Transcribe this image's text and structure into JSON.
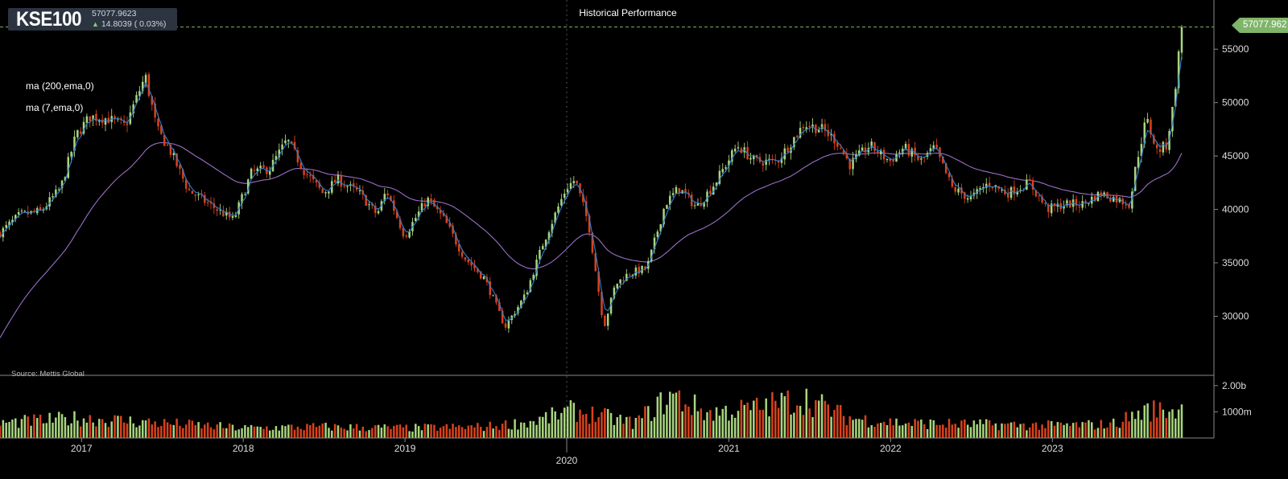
{
  "ticker": {
    "symbol": "KSE100",
    "price": "57077.9623",
    "change": "14.8039 ( 0.03%)",
    "change_arrow": "up-arrow-icon"
  },
  "last_price_tag": "57077.962",
  "legends": [
    "ma (200,ema,0)",
    "ma (7,ema,0)"
  ],
  "source": "Source: Mettis Global",
  "colors": {
    "up": "#a8d57f",
    "down": "#d9421c",
    "ma7": "#2f7fd0",
    "ma200": "#9a6fc7",
    "tag": "#7fb56a"
  },
  "chart_data": {
    "type": "candlestick",
    "title": "Historical Performance",
    "xlabel": "",
    "ylabel": "",
    "ylim": [
      26500,
      57500
    ],
    "y_ticks": [
      30000,
      35000,
      40000,
      45000,
      50000,
      55000
    ],
    "x_ticks": [
      {
        "label": "2017",
        "date": "2017-01-01"
      },
      {
        "label": "2018",
        "date": "2018-01-01"
      },
      {
        "label": "2019",
        "date": "2019-01-01"
      },
      {
        "label": "2020",
        "date": "2020-01-01"
      },
      {
        "label": "2021",
        "date": "2021-01-01"
      },
      {
        "label": "2022",
        "date": "2022-01-01"
      },
      {
        "label": "2023",
        "date": "2023-01-01"
      }
    ],
    "x_range": [
      "2016-07-01",
      "2023-10-20"
    ],
    "last_value": 57077.9623,
    "series": [
      {
        "name": "ma (7,ema,0)",
        "kind": "ema",
        "period": 7
      },
      {
        "name": "ma (200,ema,0)",
        "kind": "ema",
        "period": 200
      }
    ],
    "price_path": [
      [
        "2016-07-01",
        37800
      ],
      [
        "2016-08-15",
        39500
      ],
      [
        "2016-10-01",
        39800
      ],
      [
        "2016-11-15",
        42000
      ],
      [
        "2016-12-20",
        47000
      ],
      [
        "2017-01-20",
        48700
      ],
      [
        "2017-03-01",
        48500
      ],
      [
        "2017-04-10",
        47800
      ],
      [
        "2017-05-25",
        52500
      ],
      [
        "2017-06-20",
        47500
      ],
      [
        "2017-07-20",
        45500
      ],
      [
        "2017-08-30",
        41800
      ],
      [
        "2017-10-15",
        40500
      ],
      [
        "2017-12-10",
        39000
      ],
      [
        "2018-01-20",
        43500
      ],
      [
        "2018-03-01",
        43800
      ],
      [
        "2018-04-10",
        46500
      ],
      [
        "2018-05-20",
        43500
      ],
      [
        "2018-06-30",
        41500
      ],
      [
        "2018-08-01",
        42800
      ],
      [
        "2018-09-20",
        41500
      ],
      [
        "2018-10-30",
        39500
      ],
      [
        "2018-11-20",
        41800
      ],
      [
        "2018-12-31",
        37500
      ],
      [
        "2019-02-20",
        41000
      ],
      [
        "2019-03-31",
        39000
      ],
      [
        "2019-05-15",
        35500
      ],
      [
        "2019-06-30",
        33500
      ],
      [
        "2019-08-15",
        29000
      ],
      [
        "2019-09-30",
        32000
      ],
      [
        "2019-11-10",
        37000
      ],
      [
        "2019-12-31",
        42000
      ],
      [
        "2020-01-20",
        42800
      ],
      [
        "2020-02-20",
        38500
      ],
      [
        "2020-03-25",
        29000
      ],
      [
        "2020-04-20",
        33000
      ],
      [
        "2020-05-20",
        34000
      ],
      [
        "2020-06-30",
        34500
      ],
      [
        "2020-08-10",
        40500
      ],
      [
        "2020-09-10",
        42000
      ],
      [
        "2020-10-20",
        40200
      ],
      [
        "2020-12-01",
        42500
      ],
      [
        "2021-01-20",
        46000
      ],
      [
        "2021-03-01",
        44500
      ],
      [
        "2021-04-20",
        44500
      ],
      [
        "2021-06-20",
        48000
      ],
      [
        "2021-07-30",
        47500
      ],
      [
        "2021-08-30",
        46500
      ],
      [
        "2021-10-01",
        44200
      ],
      [
        "2021-11-15",
        46000
      ],
      [
        "2021-12-30",
        44500
      ],
      [
        "2022-01-31",
        45800
      ],
      [
        "2022-03-10",
        44500
      ],
      [
        "2022-04-10",
        45800
      ],
      [
        "2022-05-20",
        42000
      ],
      [
        "2022-06-30",
        41000
      ],
      [
        "2022-08-10",
        42500
      ],
      [
        "2022-09-20",
        41500
      ],
      [
        "2022-11-10",
        42500
      ],
      [
        "2022-12-20",
        40000
      ],
      [
        "2023-01-31",
        40500
      ],
      [
        "2023-03-10",
        40500
      ],
      [
        "2023-04-20",
        41500
      ],
      [
        "2023-06-25",
        40500
      ],
      [
        "2023-07-10",
        44500
      ],
      [
        "2023-08-01",
        48500
      ],
      [
        "2023-08-25",
        45500
      ],
      [
        "2023-09-15",
        46000
      ],
      [
        "2023-09-30",
        49500
      ],
      [
        "2023-10-20",
        57078
      ]
    ],
    "volume": {
      "y_ticks": [
        {
          "label": "1000m",
          "value": 1000000000
        },
        {
          "label": "2.00b",
          "value": 2000000000
        }
      ],
      "ylim": [
        0,
        2300000000
      ],
      "profile": [
        [
          "2016-07-01",
          600
        ],
        [
          "2016-12-31",
          800
        ],
        [
          "2017-06-30",
          600
        ],
        [
          "2017-12-31",
          400
        ],
        [
          "2018-06-30",
          450
        ],
        [
          "2018-12-31",
          400
        ],
        [
          "2019-06-30",
          450
        ],
        [
          "2019-10-15",
          650
        ],
        [
          "2020-01-15",
          1100
        ],
        [
          "2020-03-15",
          900
        ],
        [
          "2020-06-01",
          600
        ],
        [
          "2020-08-25",
          1700
        ],
        [
          "2020-11-15",
          1000
        ],
        [
          "2021-03-01",
          1200
        ],
        [
          "2021-06-20",
          1600
        ],
        [
          "2021-09-30",
          800
        ],
        [
          "2022-01-31",
          600
        ],
        [
          "2022-06-30",
          550
        ],
        [
          "2022-12-31",
          500
        ],
        [
          "2023-05-15",
          550
        ],
        [
          "2023-08-01",
          1100
        ],
        [
          "2023-10-20",
          1150
        ]
      ]
    }
  }
}
